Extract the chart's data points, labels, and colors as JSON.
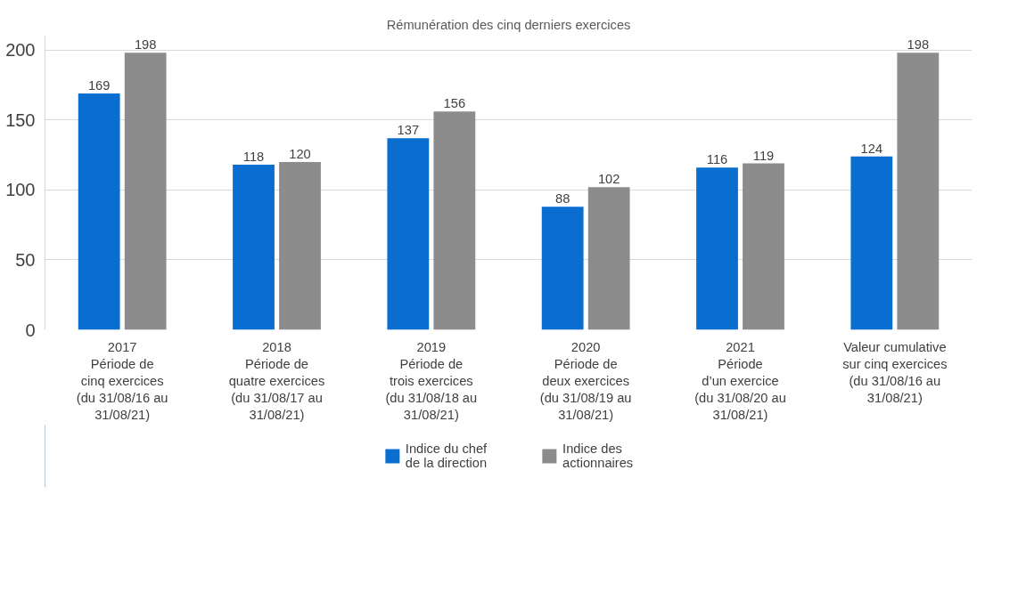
{
  "chart_data": {
    "type": "bar",
    "title": "Rémunération des cinq derniers exercices",
    "categories": [
      "2017\nPériode de\ncinq exercices\n(du 31/08/16 au\n31/08/21)",
      "2018\nPériode de\nquatre exercices\n(du 31/08/17 au\n31/08/21)",
      "2019\nPériode de\ntrois exercices\n(du 31/08/18 au\n31/08/21)",
      "2020\nPériode de\ndeux exercices\n(du 31/08/19 au\n31/08/21)",
      "2021\nPériode\nd’un exercice\n(du 31/08/20 au\n31/08/21)",
      "Valeur cumulative\nsur cinq exercices\n(du 31/08/16 au\n31/08/21)"
    ],
    "series": [
      {
        "name": "Indice du chef\nde la direction",
        "color": "#0a6ed1",
        "values": [
          169,
          118,
          137,
          88,
          116,
          124
        ]
      },
      {
        "name": "Indice des\nactionnaires",
        "color": "#8c8c8c",
        "values": [
          198,
          120,
          156,
          102,
          119,
          198
        ]
      }
    ],
    "ylim": [
      0,
      210
    ],
    "yticks": [
      0,
      50,
      100,
      150,
      200
    ],
    "grid": "y",
    "legend": "bottom",
    "data_labels": true
  }
}
